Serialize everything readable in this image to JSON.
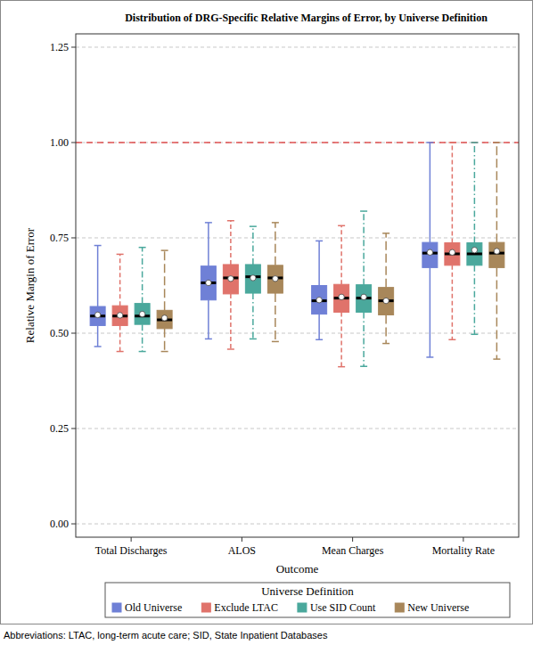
{
  "chart_data": {
    "type": "box",
    "title": "Distribution of DRG-Specific Relative Margins of Error, by Universe Definition",
    "x_label": "Outcome",
    "y_label": "Relative Margin of Error",
    "categories": [
      "Total Discharges",
      "ALOS",
      "Mean Charges",
      "Mortality Rate"
    ],
    "legend_title": "Universe Definition",
    "legend": "bottom",
    "footnote": "Abbreviations: LTAC, long-term acute care; SID, State Inpatient Databases",
    "ylim": [
      -0.035,
      1.285
    ],
    "yticks": [
      {
        "value": 0,
        "label": "0.00"
      },
      {
        "value": 0.25,
        "label": "0.25"
      },
      {
        "value": 0.5,
        "label": "0.50"
      },
      {
        "value": 0.75,
        "label": "0.75"
      },
      {
        "value": 1,
        "label": "1.00"
      },
      {
        "value": 1.25,
        "label": "1.25"
      }
    ],
    "grid": true,
    "reference_line": 1.0,
    "series": [
      {
        "name": "Old Universe",
        "color": "#6f80d6",
        "line_style": "solid",
        "min": [
          0.465,
          0.485,
          0.483,
          0.437
        ],
        "q1": [
          0.52,
          0.587,
          0.55,
          0.672
        ],
        "median": [
          0.545,
          0.632,
          0.585,
          0.71
        ],
        "q3": [
          0.57,
          0.676,
          0.625,
          0.738
        ],
        "max": [
          0.73,
          0.79,
          0.742,
          1.0
        ],
        "mean": [
          0.548,
          0.632,
          0.587,
          0.712
        ]
      },
      {
        "name": "Exclude LTAC",
        "color": "#e0736b",
        "line_style": "dashed",
        "min": [
          0.452,
          0.458,
          0.412,
          0.483
        ],
        "q1": [
          0.52,
          0.603,
          0.555,
          0.678
        ],
        "median": [
          0.545,
          0.645,
          0.592,
          0.708
        ],
        "q3": [
          0.572,
          0.68,
          0.628,
          0.737
        ],
        "max": [
          0.707,
          0.795,
          0.782,
          1.0
        ],
        "mean": [
          0.547,
          0.643,
          0.595,
          0.712
        ]
      },
      {
        "name": "Use SID Count",
        "color": "#4aa89c",
        "line_style": "dashdot",
        "min": [
          0.452,
          0.485,
          0.413,
          0.497
        ],
        "q1": [
          0.523,
          0.605,
          0.555,
          0.678
        ],
        "median": [
          0.545,
          0.648,
          0.592,
          0.708
        ],
        "q3": [
          0.578,
          0.68,
          0.627,
          0.737
        ],
        "max": [
          0.725,
          0.78,
          0.82,
          1.0
        ],
        "mean": [
          0.55,
          0.645,
          0.595,
          0.718
        ]
      },
      {
        "name": "New Universe",
        "color": "#a8875a",
        "line_style": "longdash",
        "min": [
          0.452,
          0.478,
          0.473,
          0.432
        ],
        "q1": [
          0.512,
          0.605,
          0.548,
          0.672
        ],
        "median": [
          0.535,
          0.645,
          0.585,
          0.71
        ],
        "q3": [
          0.56,
          0.678,
          0.62,
          0.738
        ],
        "max": [
          0.717,
          0.79,
          0.762,
          1.0
        ],
        "mean": [
          0.54,
          0.643,
          0.585,
          0.715
        ]
      }
    ]
  }
}
